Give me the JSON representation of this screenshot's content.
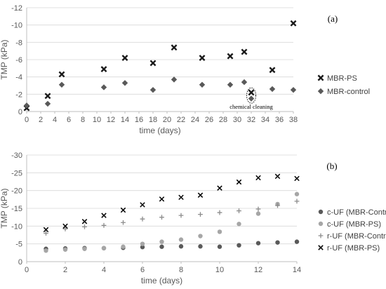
{
  "chart_data": [
    {
      "panel": "(a)",
      "type": "scatter",
      "xlabel": "time (days)",
      "ylabel": "TMP (kPa)",
      "xlim": [
        0,
        38
      ],
      "ylim": [
        0,
        -12
      ],
      "xticks": [
        0,
        2,
        4,
        6,
        8,
        10,
        12,
        14,
        16,
        18,
        20,
        22,
        24,
        26,
        28,
        30,
        32,
        34,
        36,
        38
      ],
      "yticks": [
        0,
        -2,
        -4,
        -6,
        -8,
        -10,
        -12
      ],
      "grid": "horizontal",
      "legend_position": "right",
      "series": [
        {
          "name": "MBR-PS",
          "marker": "x-bold",
          "color": "#1a1a1a",
          "x": [
            0,
            3,
            5,
            11,
            14,
            18,
            21,
            25,
            29,
            31,
            32,
            35,
            38
          ],
          "y": [
            -0.4,
            -1.8,
            -4.3,
            -4.9,
            -6.2,
            -5.6,
            -7.4,
            -6.2,
            -6.4,
            -6.9,
            -2.2,
            -4.8,
            -10.2
          ]
        },
        {
          "name": "MBR-control",
          "marker": "diamond",
          "color": "#595959",
          "x": [
            0,
            3,
            5,
            11,
            14,
            18,
            21,
            25,
            29,
            31,
            32,
            35,
            38
          ],
          "y": [
            -0.7,
            -0.9,
            -3.1,
            -2.8,
            -3.3,
            -2.5,
            -3.7,
            -3.1,
            -3.1,
            -3.4,
            -1.5,
            -2.6,
            -2.5
          ]
        }
      ],
      "annotation": {
        "text": "chemical cleaning",
        "x": 32,
        "y": -1.85
      }
    },
    {
      "panel": "(b)",
      "type": "scatter",
      "xlabel": "time (days)",
      "ylabel": "TMP (kPa)",
      "xlim": [
        0,
        14
      ],
      "ylim": [
        0,
        -30
      ],
      "xticks": [
        0,
        2,
        4,
        6,
        8,
        10,
        12,
        14
      ],
      "yticks": [
        0,
        -5,
        -10,
        -15,
        -20,
        -25,
        -30
      ],
      "grid": "horizontal",
      "legend_position": "right",
      "series": [
        {
          "name": "c-UF (MBR-Control)",
          "marker": "circle",
          "color": "#595959",
          "x": [
            1,
            2,
            3,
            4,
            5,
            6,
            7,
            8,
            9,
            10,
            11,
            12,
            13,
            14
          ],
          "y": [
            -3.6,
            -3.7,
            -3.8,
            -3.8,
            -3.9,
            -4.1,
            -4.2,
            -4.3,
            -4.3,
            -4.2,
            -4.6,
            -5.2,
            -5.4,
            -5.6
          ]
        },
        {
          "name": "c-UF (MBR-PS)",
          "marker": "circle",
          "color": "#a6a6a6",
          "x": [
            1,
            2,
            3,
            4,
            5,
            6,
            7,
            8,
            9,
            10,
            11,
            12,
            13,
            14
          ],
          "y": [
            -3.1,
            -3.4,
            -3.6,
            -3.8,
            -4.2,
            -5.0,
            -5.6,
            -6.2,
            -7.2,
            -8.4,
            -10.6,
            -13.5,
            -16.2,
            -19.0
          ]
        },
        {
          "name": "r-UF (MBR-Control)",
          "marker": "plus",
          "color": "#8c8c8c",
          "x": [
            1,
            2,
            3,
            4,
            5,
            6,
            7,
            8,
            9,
            10,
            11,
            12,
            13,
            14
          ],
          "y": [
            -8.0,
            -9.2,
            -9.8,
            -10.2,
            -11.0,
            -12.0,
            -12.5,
            -13.0,
            -13.3,
            -13.8,
            -14.3,
            -14.8,
            -15.8,
            -17.0
          ]
        },
        {
          "name": "r-UF (MBR-PS)",
          "marker": "x",
          "color": "#000000",
          "x": [
            1,
            2,
            3,
            4,
            5,
            6,
            7,
            8,
            9,
            10,
            11,
            12,
            13,
            14
          ],
          "y": [
            -9.0,
            -10.0,
            -11.3,
            -13.0,
            -14.5,
            -16.0,
            -17.6,
            -18.1,
            -18.7,
            -20.7,
            -22.4,
            -23.6,
            -24.0,
            -23.4
          ]
        }
      ]
    }
  ]
}
